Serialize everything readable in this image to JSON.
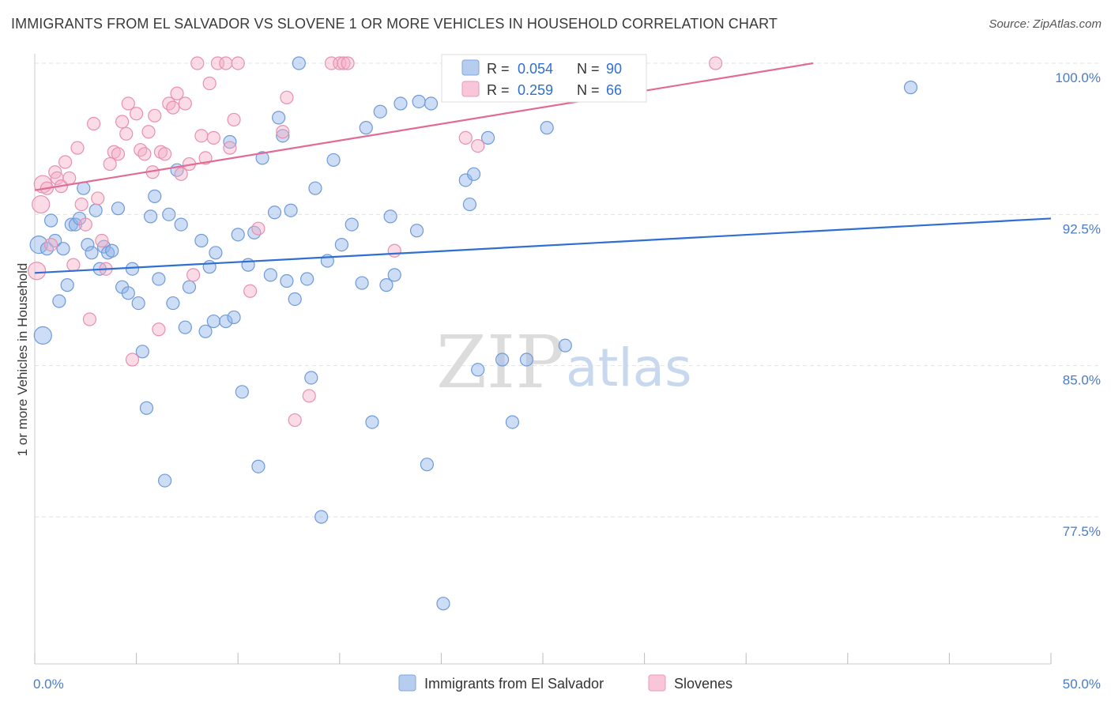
{
  "title": "IMMIGRANTS FROM EL SALVADOR VS SLOVENE 1 OR MORE VEHICLES IN HOUSEHOLD CORRELATION CHART",
  "source": "Source: ZipAtlas.com",
  "watermark": {
    "zip": "ZIP",
    "atlas": "atlas"
  },
  "chart_data": {
    "type": "scatter",
    "ylabel": "1 or more Vehicles in Household",
    "xlim": [
      0,
      50
    ],
    "ylim": [
      71,
      101.5
    ],
    "x_tick_labels": [
      {
        "value": 0,
        "label": "0.0%"
      },
      {
        "value": 50,
        "label": "50.0%"
      }
    ],
    "y_ticks": [
      {
        "value": 100,
        "label": "100.0%"
      },
      {
        "value": 92.5,
        "label": "92.5%"
      },
      {
        "value": 85,
        "label": "85.0%"
      },
      {
        "value": 77.5,
        "label": "77.5%"
      }
    ],
    "x_minor_ticks": [
      0,
      5,
      10,
      15,
      20,
      25,
      30,
      35,
      40,
      45,
      50
    ],
    "grid": true,
    "legend_position": "top-center",
    "legend": [
      {
        "r_label": "R =",
        "r": "0.054",
        "n_label": "N =",
        "n": "90"
      },
      {
        "r_label": "R =",
        "r": "0.259",
        "n_label": "N =",
        "n": "66"
      }
    ],
    "series": [
      {
        "name": "Immigrants from El Salvador",
        "color": "#8fb3e8",
        "stroke": "#6f9ad8",
        "trend_color": "#2f6fd1",
        "trend": {
          "x0": 0,
          "y0": 89.6,
          "x1": 50,
          "y1": 92.3
        },
        "points": [
          [
            0.2,
            91.0
          ],
          [
            0.4,
            86.5
          ],
          [
            0.6,
            90.8
          ],
          [
            0.8,
            92.2
          ],
          [
            1.0,
            91.2
          ],
          [
            1.2,
            88.2
          ],
          [
            1.4,
            90.8
          ],
          [
            1.6,
            89.0
          ],
          [
            1.8,
            92.0
          ],
          [
            2.0,
            92.0
          ],
          [
            2.2,
            92.3
          ],
          [
            2.4,
            93.8
          ],
          [
            2.6,
            91.0
          ],
          [
            2.8,
            90.6
          ],
          [
            3.0,
            92.7
          ],
          [
            3.2,
            89.8
          ],
          [
            3.4,
            90.9
          ],
          [
            3.6,
            90.6
          ],
          [
            3.8,
            90.7
          ],
          [
            4.1,
            92.8
          ],
          [
            4.3,
            88.9
          ],
          [
            4.6,
            88.6
          ],
          [
            4.8,
            89.8
          ],
          [
            5.1,
            88.1
          ],
          [
            5.3,
            85.7
          ],
          [
            5.5,
            82.9
          ],
          [
            5.7,
            92.4
          ],
          [
            5.9,
            93.4
          ],
          [
            6.1,
            89.3
          ],
          [
            6.4,
            79.3
          ],
          [
            6.6,
            92.5
          ],
          [
            6.8,
            88.1
          ],
          [
            7.0,
            94.7
          ],
          [
            7.2,
            92.0
          ],
          [
            7.4,
            86.9
          ],
          [
            7.6,
            88.9
          ],
          [
            8.2,
            91.2
          ],
          [
            8.4,
            86.7
          ],
          [
            8.6,
            89.9
          ],
          [
            8.8,
            87.2
          ],
          [
            8.9,
            90.6
          ],
          [
            9.4,
            87.2
          ],
          [
            9.6,
            96.1
          ],
          [
            9.8,
            87.4
          ],
          [
            10.0,
            91.5
          ],
          [
            10.2,
            83.7
          ],
          [
            10.5,
            90.0
          ],
          [
            10.8,
            91.6
          ],
          [
            11.0,
            80.0
          ],
          [
            11.2,
            95.3
          ],
          [
            11.6,
            89.5
          ],
          [
            11.8,
            92.6
          ],
          [
            12.0,
            97.3
          ],
          [
            12.2,
            96.4
          ],
          [
            12.4,
            89.2
          ],
          [
            12.6,
            92.7
          ],
          [
            12.8,
            88.3
          ],
          [
            13.0,
            100.0
          ],
          [
            13.4,
            89.3
          ],
          [
            13.6,
            84.4
          ],
          [
            13.8,
            93.8
          ],
          [
            14.1,
            77.5
          ],
          [
            14.4,
            90.2
          ],
          [
            14.7,
            95.2
          ],
          [
            15.1,
            91.0
          ],
          [
            15.6,
            92.0
          ],
          [
            16.1,
            89.1
          ],
          [
            16.3,
            96.8
          ],
          [
            16.6,
            82.2
          ],
          [
            17.0,
            97.6
          ],
          [
            17.3,
            89.0
          ],
          [
            17.5,
            92.4
          ],
          [
            17.7,
            89.5
          ],
          [
            18.0,
            98.0
          ],
          [
            18.8,
            91.7
          ],
          [
            18.9,
            98.1
          ],
          [
            19.3,
            80.1
          ],
          [
            19.5,
            98.0
          ],
          [
            20.1,
            73.2
          ],
          [
            21.2,
            94.2
          ],
          [
            21.4,
            93.0
          ],
          [
            21.6,
            94.5
          ],
          [
            21.8,
            84.8
          ],
          [
            22.3,
            96.3
          ],
          [
            23.0,
            85.3
          ],
          [
            23.5,
            82.2
          ],
          [
            24.2,
            85.3
          ],
          [
            25.2,
            96.8
          ],
          [
            26.1,
            86.0
          ],
          [
            43.1,
            98.8
          ]
        ]
      },
      {
        "name": "Slovenes",
        "color": "#f4b0c8",
        "stroke": "#e890b0",
        "trend_color": "#e26b95",
        "trend": {
          "x0": 0,
          "y0": 93.7,
          "x1": 38.3,
          "y1": 100.0
        },
        "points": [
          [
            0.1,
            89.7
          ],
          [
            0.3,
            93.0
          ],
          [
            0.4,
            94.0
          ],
          [
            0.6,
            93.8
          ],
          [
            0.8,
            91.0
          ],
          [
            1.0,
            94.6
          ],
          [
            1.1,
            94.3
          ],
          [
            1.3,
            93.9
          ],
          [
            1.5,
            95.1
          ],
          [
            1.7,
            94.3
          ],
          [
            1.9,
            90.0
          ],
          [
            2.1,
            95.8
          ],
          [
            2.3,
            93.0
          ],
          [
            2.5,
            92.0
          ],
          [
            2.7,
            87.3
          ],
          [
            2.9,
            97.0
          ],
          [
            3.1,
            93.3
          ],
          [
            3.3,
            91.2
          ],
          [
            3.5,
            89.8
          ],
          [
            3.7,
            95.0
          ],
          [
            3.9,
            95.6
          ],
          [
            4.1,
            95.5
          ],
          [
            4.3,
            97.1
          ],
          [
            4.5,
            96.5
          ],
          [
            4.6,
            98.0
          ],
          [
            4.8,
            85.3
          ],
          [
            5.0,
            97.5
          ],
          [
            5.2,
            95.7
          ],
          [
            5.4,
            95.5
          ],
          [
            5.6,
            96.6
          ],
          [
            5.8,
            94.6
          ],
          [
            5.9,
            97.4
          ],
          [
            6.1,
            86.8
          ],
          [
            6.2,
            95.6
          ],
          [
            6.4,
            95.5
          ],
          [
            6.6,
            98.0
          ],
          [
            6.8,
            97.8
          ],
          [
            7.0,
            98.5
          ],
          [
            7.2,
            94.5
          ],
          [
            7.4,
            98.0
          ],
          [
            7.6,
            95.0
          ],
          [
            7.8,
            89.5
          ],
          [
            8.0,
            100.0
          ],
          [
            8.2,
            96.4
          ],
          [
            8.4,
            95.3
          ],
          [
            8.6,
            99.0
          ],
          [
            8.8,
            96.3
          ],
          [
            9.0,
            100.0
          ],
          [
            9.4,
            100.0
          ],
          [
            9.6,
            95.8
          ],
          [
            9.8,
            97.2
          ],
          [
            10.0,
            100.0
          ],
          [
            10.6,
            88.7
          ],
          [
            11.0,
            91.8
          ],
          [
            12.2,
            96.6
          ],
          [
            12.4,
            98.3
          ],
          [
            12.8,
            82.3
          ],
          [
            13.5,
            83.5
          ],
          [
            14.6,
            100.0
          ],
          [
            15.0,
            100.0
          ],
          [
            15.2,
            100.0
          ],
          [
            15.4,
            100.0
          ],
          [
            17.7,
            90.7
          ],
          [
            21.2,
            96.3
          ],
          [
            21.8,
            95.9
          ],
          [
            33.5,
            100.0
          ]
        ]
      }
    ]
  }
}
